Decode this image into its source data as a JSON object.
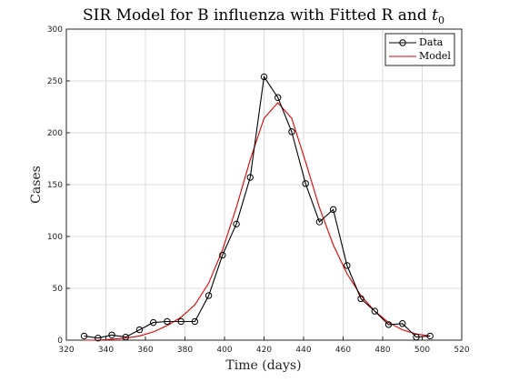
{
  "chart_data": {
    "type": "line",
    "title_main": "SIR Model for B influenza with Fitted R and ",
    "title_var": "t",
    "title_sub": "0",
    "xlabel": "Time (days)",
    "ylabel": "Cases",
    "xlim": [
      320,
      520
    ],
    "ylim": [
      0,
      300
    ],
    "xticks": [
      320,
      340,
      360,
      380,
      400,
      420,
      440,
      460,
      480,
      500,
      520
    ],
    "yticks": [
      0,
      50,
      100,
      150,
      200,
      250,
      300
    ],
    "grid": true,
    "legend_position": "top-right",
    "series": [
      {
        "name": "Data",
        "color": "#000000",
        "marker": "circle",
        "x": [
          329,
          336,
          343,
          350,
          357,
          364,
          371,
          378,
          385,
          392,
          399,
          406,
          413,
          420,
          427,
          434,
          441,
          448,
          455,
          462,
          469,
          476,
          483,
          490,
          497,
          504
        ],
        "y": [
          4,
          2,
          5,
          3,
          10,
          17,
          18,
          18,
          18,
          43,
          82,
          112,
          157,
          254,
          234,
          201,
          151,
          114,
          126,
          72,
          40,
          28,
          15,
          16,
          3,
          4
        ]
      },
      {
        "name": "Model",
        "color": "#e00000",
        "marker": "none",
        "x": [
          329,
          336,
          343,
          350,
          357,
          364,
          371,
          378,
          385,
          392,
          399,
          406,
          413,
          420,
          427,
          434,
          441,
          448,
          455,
          462,
          469,
          476,
          483,
          490,
          497,
          504
        ],
        "y": [
          0,
          0,
          1,
          2,
          4,
          8,
          14,
          22,
          34,
          55,
          87,
          128,
          174,
          214,
          229,
          214,
          172,
          128,
          92,
          64,
          43,
          28,
          17,
          10,
          6,
          4
        ]
      }
    ]
  }
}
